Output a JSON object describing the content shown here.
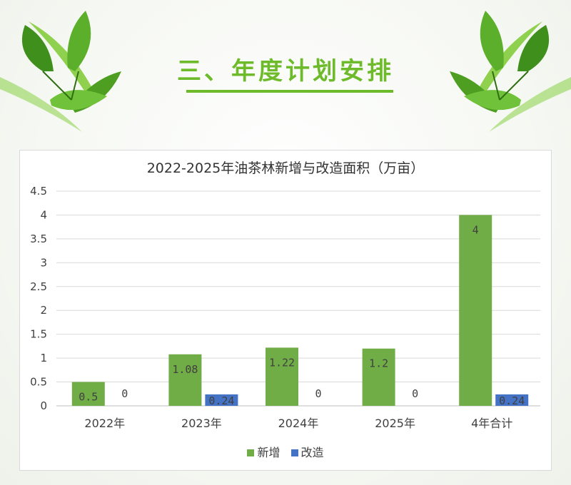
{
  "page": {
    "section_title": "三、年度计划安排"
  },
  "colors": {
    "accent": "#6dbb2a",
    "series_new": "#70ad47",
    "series_reform": "#4472c4",
    "leaf_dark": "#3f8f1c",
    "leaf_light": "#8fd14f"
  },
  "icons": {
    "left_decoration": "leaf-cluster-icon",
    "right_decoration": "leaf-cluster-icon"
  },
  "chart_data": {
    "type": "bar",
    "title": "2022-2025年油茶林新增与改造面积（万亩）",
    "categories": [
      "2022年",
      "2023年",
      "2024年",
      "2025年",
      "4年合计"
    ],
    "series": [
      {
        "name": "新增",
        "color": "#70ad47",
        "values": [
          0.5,
          1.08,
          1.22,
          1.2,
          4
        ],
        "labels": [
          "0.5",
          "1.08",
          "1.22",
          "1.2",
          "4"
        ]
      },
      {
        "name": "改造",
        "color": "#4472c4",
        "values": [
          0,
          0.24,
          0,
          0,
          0.24
        ],
        "labels": [
          "0",
          "0.24",
          "0",
          "0",
          "0.24"
        ]
      }
    ],
    "yticks": [
      "0",
      "0.5",
      "1",
      "1.5",
      "2",
      "2.5",
      "3",
      "3.5",
      "4",
      "4.5"
    ],
    "ylim": [
      0,
      4.5
    ],
    "grid": true,
    "legend_position": "bottom"
  }
}
